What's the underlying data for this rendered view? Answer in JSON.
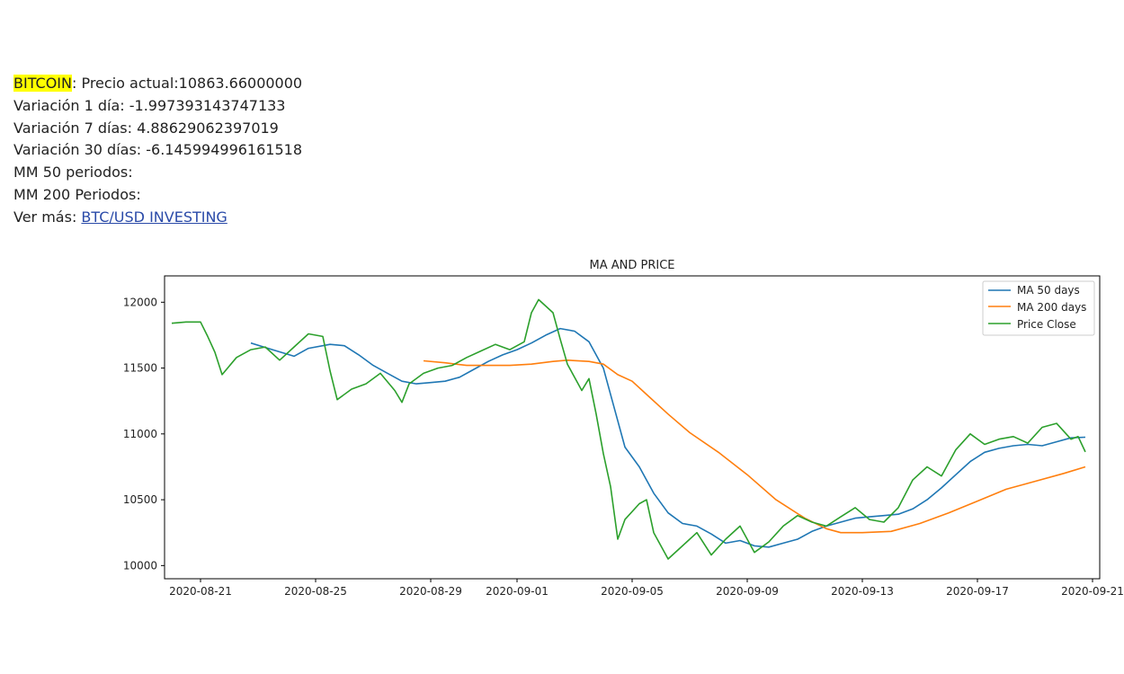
{
  "info": {
    "coin": "BITCOIN",
    "price_label": ": Precio actual:",
    "price": "10863.66000000",
    "var1_label": "Variación 1 día: ",
    "var1": "-1.997393143747133",
    "var7_label": "Variación 7 días: ",
    "var7": "4.88629062397019",
    "var30_label": "Variación 30 días: ",
    "var30": "-6.145994996161518",
    "ma50_label": "MM 50 periodos:",
    "ma200_label": "MM 200 Periodos:",
    "more_label": "Ver más: ",
    "more_link": "BTC/USD INVESTING"
  },
  "colors": {
    "ma50": "#1f77b4",
    "ma200": "#ff7f0e",
    "price": "#2ca02c"
  },
  "chart_data": {
    "type": "line",
    "title": "MA AND PRICE",
    "xlabel": "",
    "ylabel": "",
    "xlim": [
      "2020-08-19T18:00",
      "2020-09-21T06:00"
    ],
    "ylim": [
      9900,
      12200
    ],
    "x_ticks": [
      "2020-08-21",
      "2020-08-25",
      "2020-08-29",
      "2020-09-01",
      "2020-09-05",
      "2020-09-09",
      "2020-09-13",
      "2020-09-17",
      "2020-09-21"
    ],
    "y_ticks": [
      10000,
      10500,
      11000,
      11500,
      12000
    ],
    "legend_position": "top-right",
    "grid": false,
    "series": [
      {
        "name": "MA 50 days",
        "points": [
          [
            "2020-08-22T18:00",
            11690
          ],
          [
            "2020-08-23T12:00",
            11640
          ],
          [
            "2020-08-24T06:00",
            11590
          ],
          [
            "2020-08-24T18:00",
            11650
          ],
          [
            "2020-08-25T12:00",
            11680
          ],
          [
            "2020-08-26T00:00",
            11670
          ],
          [
            "2020-08-26T12:00",
            11600
          ],
          [
            "2020-08-27T00:00",
            11520
          ],
          [
            "2020-08-27T12:00",
            11460
          ],
          [
            "2020-08-28T00:00",
            11400
          ],
          [
            "2020-08-28T12:00",
            11380
          ],
          [
            "2020-08-29T00:00",
            11390
          ],
          [
            "2020-08-29T12:00",
            11400
          ],
          [
            "2020-08-30T00:00",
            11430
          ],
          [
            "2020-08-30T12:00",
            11490
          ],
          [
            "2020-08-31T00:00",
            11550
          ],
          [
            "2020-08-31T12:00",
            11600
          ],
          [
            "2020-09-01T00:00",
            11640
          ],
          [
            "2020-09-01T12:00",
            11690
          ],
          [
            "2020-09-02T00:00",
            11750
          ],
          [
            "2020-09-02T12:00",
            11800
          ],
          [
            "2020-09-03T00:00",
            11780
          ],
          [
            "2020-09-03T12:00",
            11700
          ],
          [
            "2020-09-04T00:00",
            11500
          ],
          [
            "2020-09-04T06:00",
            11300
          ],
          [
            "2020-09-04T12:00",
            11100
          ],
          [
            "2020-09-04T18:00",
            10900
          ],
          [
            "2020-09-05T06:00",
            10750
          ],
          [
            "2020-09-05T18:00",
            10550
          ],
          [
            "2020-09-06T06:00",
            10400
          ],
          [
            "2020-09-06T18:00",
            10320
          ],
          [
            "2020-09-07T06:00",
            10300
          ],
          [
            "2020-09-07T18:00",
            10240
          ],
          [
            "2020-09-08T06:00",
            10170
          ],
          [
            "2020-09-08T18:00",
            10190
          ],
          [
            "2020-09-09T06:00",
            10150
          ],
          [
            "2020-09-09T18:00",
            10140
          ],
          [
            "2020-09-10T06:00",
            10170
          ],
          [
            "2020-09-10T18:00",
            10200
          ],
          [
            "2020-09-11T06:00",
            10260
          ],
          [
            "2020-09-11T18:00",
            10300
          ],
          [
            "2020-09-12T06:00",
            10330
          ],
          [
            "2020-09-12T18:00",
            10360
          ],
          [
            "2020-09-13T06:00",
            10370
          ],
          [
            "2020-09-13T18:00",
            10380
          ],
          [
            "2020-09-14T06:00",
            10390
          ],
          [
            "2020-09-14T18:00",
            10430
          ],
          [
            "2020-09-15T06:00",
            10500
          ],
          [
            "2020-09-15T18:00",
            10590
          ],
          [
            "2020-09-16T06:00",
            10690
          ],
          [
            "2020-09-16T18:00",
            10790
          ],
          [
            "2020-09-17T06:00",
            10860
          ],
          [
            "2020-09-17T18:00",
            10890
          ],
          [
            "2020-09-18T06:00",
            10910
          ],
          [
            "2020-09-18T18:00",
            10920
          ],
          [
            "2020-09-19T06:00",
            10910
          ],
          [
            "2020-09-19T18:00",
            10940
          ],
          [
            "2020-09-20T06:00",
            10970
          ],
          [
            "2020-09-20T18:00",
            10975
          ]
        ]
      },
      {
        "name": "MA 200 days",
        "points": [
          [
            "2020-08-28T18:00",
            11555
          ],
          [
            "2020-08-29T12:00",
            11540
          ],
          [
            "2020-08-30T06:00",
            11520
          ],
          [
            "2020-08-31T00:00",
            11520
          ],
          [
            "2020-08-31T18:00",
            11520
          ],
          [
            "2020-09-01T12:00",
            11530
          ],
          [
            "2020-09-02T06:00",
            11550
          ],
          [
            "2020-09-02T18:00",
            11560
          ],
          [
            "2020-09-03T12:00",
            11550
          ],
          [
            "2020-09-04T00:00",
            11530
          ],
          [
            "2020-09-04T12:00",
            11450
          ],
          [
            "2020-09-05T00:00",
            11400
          ],
          [
            "2020-09-05T12:00",
            11300
          ],
          [
            "2020-09-06T06:00",
            11150
          ],
          [
            "2020-09-07T00:00",
            11010
          ],
          [
            "2020-09-08T00:00",
            10860
          ],
          [
            "2020-09-09T00:00",
            10690
          ],
          [
            "2020-09-10T00:00",
            10500
          ],
          [
            "2020-09-11T00:00",
            10360
          ],
          [
            "2020-09-11T18:00",
            10280
          ],
          [
            "2020-09-12T06:00",
            10250
          ],
          [
            "2020-09-13T00:00",
            10250
          ],
          [
            "2020-09-14T00:00",
            10260
          ],
          [
            "2020-09-15T00:00",
            10320
          ],
          [
            "2020-09-16T00:00",
            10400
          ],
          [
            "2020-09-17T00:00",
            10490
          ],
          [
            "2020-09-18T00:00",
            10580
          ],
          [
            "2020-09-19T00:00",
            10640
          ],
          [
            "2020-09-20T00:00",
            10700
          ],
          [
            "2020-09-20T18:00",
            10750
          ]
        ]
      },
      {
        "name": "Price Close",
        "points": [
          [
            "2020-08-20T00:00",
            11840
          ],
          [
            "2020-08-20T12:00",
            11850
          ],
          [
            "2020-08-21T00:00",
            11850
          ],
          [
            "2020-08-21T06:00",
            11740
          ],
          [
            "2020-08-21T12:00",
            11620
          ],
          [
            "2020-08-21T18:00",
            11450
          ],
          [
            "2020-08-22T06:00",
            11580
          ],
          [
            "2020-08-22T18:00",
            11640
          ],
          [
            "2020-08-23T06:00",
            11660
          ],
          [
            "2020-08-23T18:00",
            11560
          ],
          [
            "2020-08-24T06:00",
            11660
          ],
          [
            "2020-08-24T18:00",
            11760
          ],
          [
            "2020-08-25T06:00",
            11740
          ],
          [
            "2020-08-25T12:00",
            11480
          ],
          [
            "2020-08-25T18:00",
            11260
          ],
          [
            "2020-08-26T06:00",
            11340
          ],
          [
            "2020-08-26T18:00",
            11380
          ],
          [
            "2020-08-27T06:00",
            11460
          ],
          [
            "2020-08-27T18:00",
            11330
          ],
          [
            "2020-08-28T00:00",
            11240
          ],
          [
            "2020-08-28T06:00",
            11380
          ],
          [
            "2020-08-28T18:00",
            11460
          ],
          [
            "2020-08-29T06:00",
            11500
          ],
          [
            "2020-08-29T18:00",
            11520
          ],
          [
            "2020-08-30T06:00",
            11580
          ],
          [
            "2020-08-30T18:00",
            11630
          ],
          [
            "2020-08-31T06:00",
            11680
          ],
          [
            "2020-08-31T18:00",
            11640
          ],
          [
            "2020-09-01T06:00",
            11700
          ],
          [
            "2020-09-01T12:00",
            11920
          ],
          [
            "2020-09-01T18:00",
            12020
          ],
          [
            "2020-09-02T06:00",
            11920
          ],
          [
            "2020-09-02T12:00",
            11720
          ],
          [
            "2020-09-02T18:00",
            11530
          ],
          [
            "2020-09-03T06:00",
            11330
          ],
          [
            "2020-09-03T12:00",
            11420
          ],
          [
            "2020-09-03T18:00",
            11150
          ],
          [
            "2020-09-04T00:00",
            10850
          ],
          [
            "2020-09-04T06:00",
            10600
          ],
          [
            "2020-09-04T12:00",
            10200
          ],
          [
            "2020-09-04T18:00",
            10350
          ],
          [
            "2020-09-05T06:00",
            10470
          ],
          [
            "2020-09-05T12:00",
            10500
          ],
          [
            "2020-09-05T18:00",
            10250
          ],
          [
            "2020-09-06T06:00",
            10050
          ],
          [
            "2020-09-06T18:00",
            10150
          ],
          [
            "2020-09-07T06:00",
            10250
          ],
          [
            "2020-09-07T18:00",
            10080
          ],
          [
            "2020-09-08T06:00",
            10200
          ],
          [
            "2020-09-08T18:00",
            10300
          ],
          [
            "2020-09-09T06:00",
            10100
          ],
          [
            "2020-09-09T18:00",
            10180
          ],
          [
            "2020-09-10T06:00",
            10300
          ],
          [
            "2020-09-10T18:00",
            10380
          ],
          [
            "2020-09-11T06:00",
            10330
          ],
          [
            "2020-09-11T18:00",
            10300
          ],
          [
            "2020-09-12T06:00",
            10370
          ],
          [
            "2020-09-12T18:00",
            10440
          ],
          [
            "2020-09-13T06:00",
            10350
          ],
          [
            "2020-09-13T18:00",
            10330
          ],
          [
            "2020-09-14T06:00",
            10440
          ],
          [
            "2020-09-14T18:00",
            10650
          ],
          [
            "2020-09-15T06:00",
            10750
          ],
          [
            "2020-09-15T18:00",
            10680
          ],
          [
            "2020-09-16T06:00",
            10880
          ],
          [
            "2020-09-16T18:00",
            11000
          ],
          [
            "2020-09-17T06:00",
            10920
          ],
          [
            "2020-09-17T18:00",
            10960
          ],
          [
            "2020-09-18T06:00",
            10980
          ],
          [
            "2020-09-18T18:00",
            10930
          ],
          [
            "2020-09-19T06:00",
            11050
          ],
          [
            "2020-09-19T18:00",
            11080
          ],
          [
            "2020-09-20T06:00",
            10960
          ],
          [
            "2020-09-20T12:00",
            10980
          ],
          [
            "2020-09-20T18:00",
            10863
          ]
        ]
      }
    ]
  }
}
